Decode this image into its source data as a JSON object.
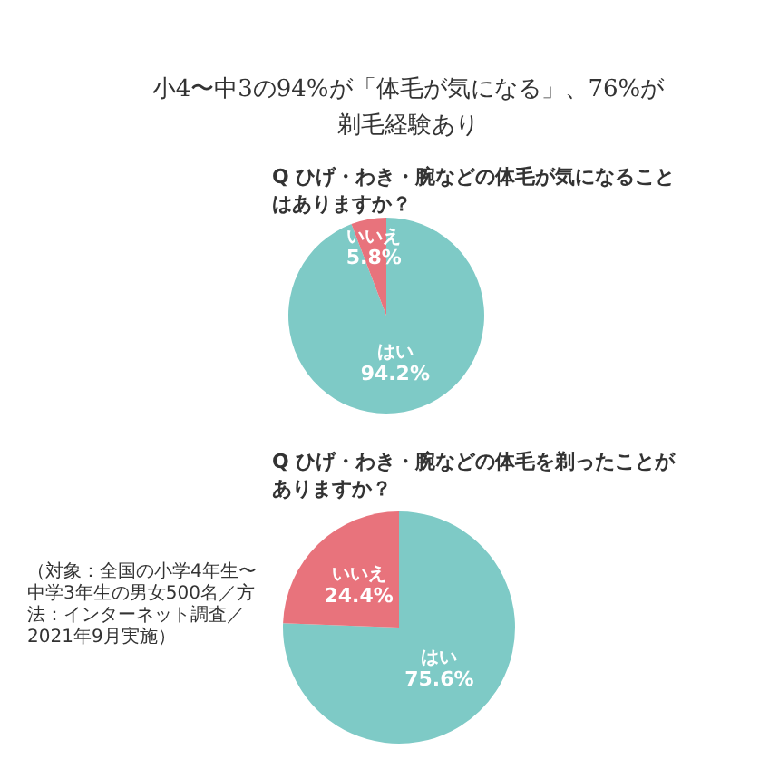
{
  "chart_data": [
    {
      "type": "pie",
      "title": "小4〜中3の94%が「体毛が気になる」、76%が剃毛経験あり",
      "subtitle": "Q ひげ・わき・腕などの体毛が気になることはありますか？",
      "categories": [
        "はい",
        "いいえ"
      ],
      "values": [
        94.2,
        5.8
      ],
      "colors": [
        "#7ecac6",
        "#e8737c"
      ],
      "value_labels": [
        "94.2%",
        "5.8%"
      ]
    },
    {
      "type": "pie",
      "title": "Q ひげ・わき・腕などの体毛を剃ったことがありますか？",
      "categories": [
        "はい",
        "いいえ"
      ],
      "values": [
        75.6,
        24.4
      ],
      "colors": [
        "#7ecac6",
        "#e8737c"
      ],
      "value_labels": [
        "75.6%",
        "24.4%"
      ],
      "annotations": [
        "（対象：全国の小学4年生〜中学3年生の男女500名／方法：インターネット調査／2021年9月実施）"
      ]
    }
  ]
}
